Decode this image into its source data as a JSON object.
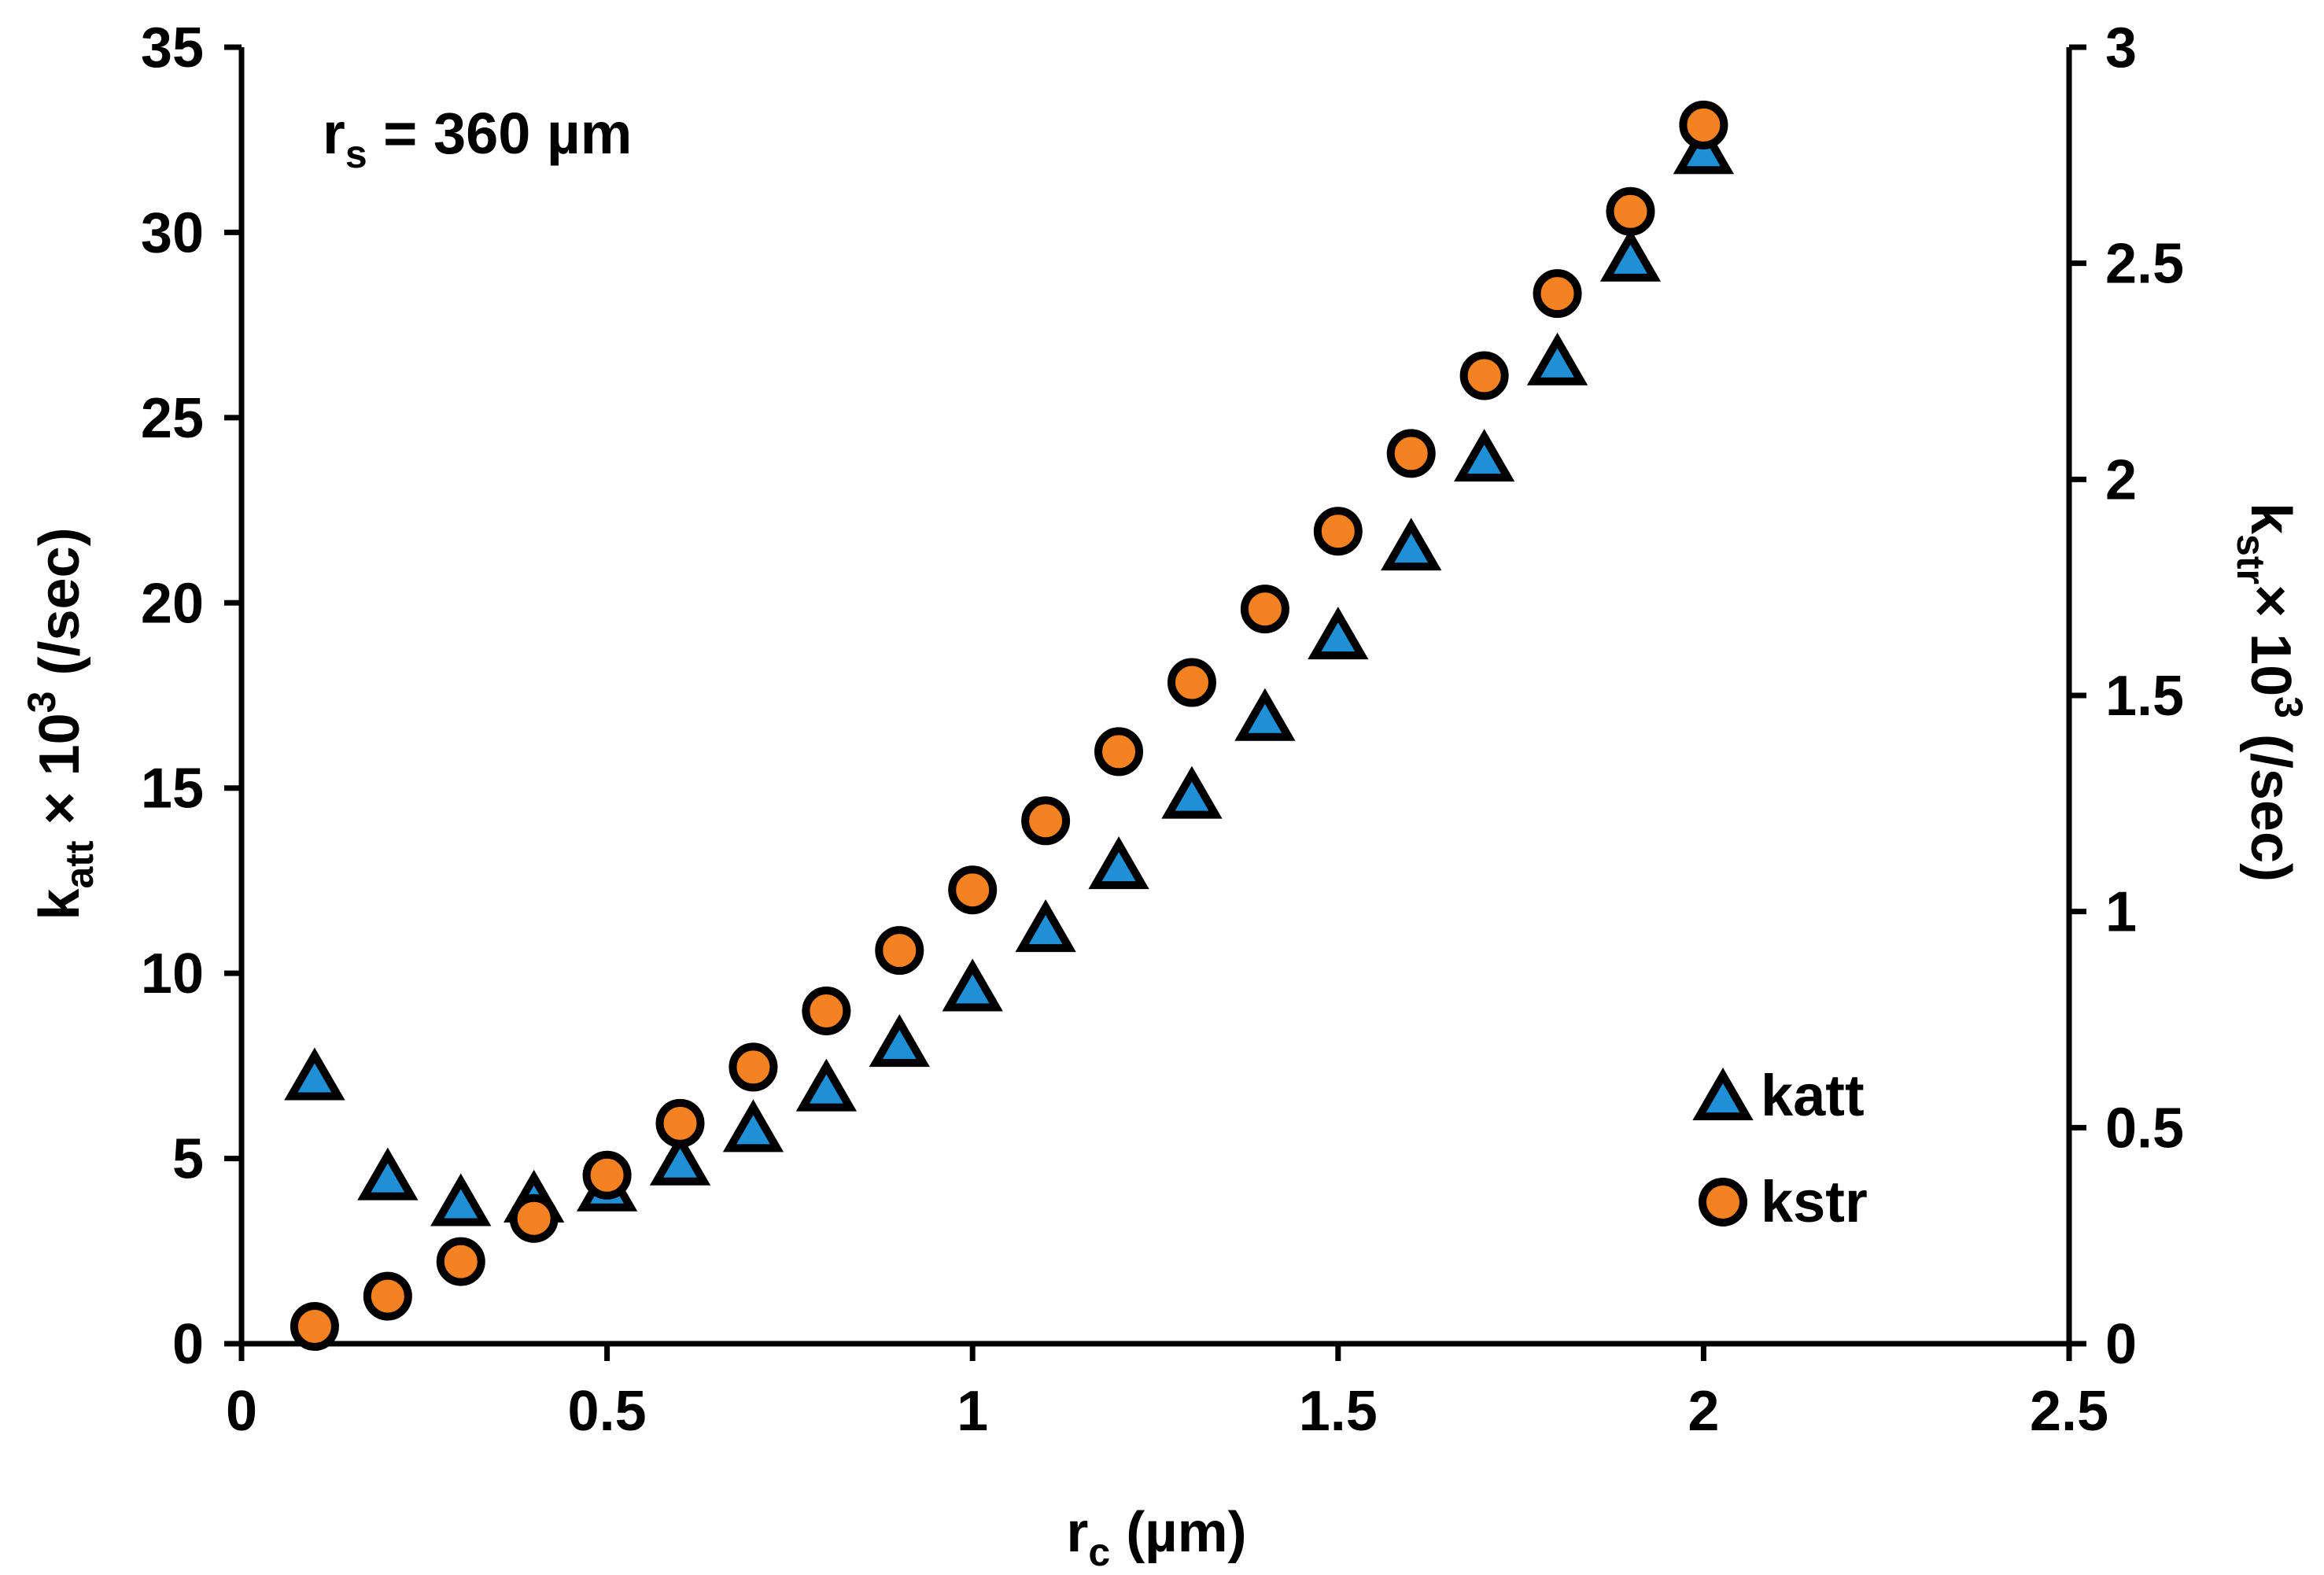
{
  "chart_data": {
    "type": "scatter",
    "annotation": {
      "main": "r",
      "sub": "s",
      "rest": " = 360 µm"
    },
    "xlabel": {
      "main": "r",
      "sub": "c",
      "rest": " (µm)"
    },
    "ylabel_left": {
      "main": "k",
      "sub": "att",
      "rest": " × 10",
      "sup": "3",
      "tail": " (/sec)"
    },
    "ylabel_right": {
      "main": "k",
      "sub": "str",
      "rest": "× 10",
      "sup": "3",
      "tail": " (/sec)"
    },
    "xlim": [
      0,
      2.5
    ],
    "ylim_left": [
      0,
      35
    ],
    "ylim_right": [
      0,
      3
    ],
    "xticks": [
      "0",
      "0.5",
      "1",
      "1.5",
      "2",
      "2.5"
    ],
    "yticks_left": [
      "0",
      "5",
      "10",
      "15",
      "20",
      "25",
      "30",
      "35"
    ],
    "yticks_right": [
      "0",
      "0.5",
      "1",
      "1.5",
      "2",
      "2.5",
      "3"
    ],
    "legend_position": "bottom-right",
    "grid": false,
    "series": [
      {
        "name": "katt",
        "axis": "left",
        "marker": "triangle",
        "color": "#1f8fd6",
        "x": [
          0.1,
          0.2,
          0.3,
          0.4,
          0.5,
          0.6,
          0.7,
          0.8,
          0.9,
          1.0,
          1.1,
          1.2,
          1.3,
          1.4,
          1.5,
          1.6,
          1.7,
          1.8,
          1.9,
          2.0
        ],
        "y": [
          7.1,
          4.4,
          3.7,
          3.8,
          4.1,
          4.8,
          5.7,
          6.8,
          8.0,
          9.5,
          11.1,
          12.8,
          14.7,
          16.8,
          19.0,
          21.4,
          23.8,
          26.4,
          29.2,
          32.1
        ]
      },
      {
        "name": "kstr",
        "axis": "right",
        "marker": "circle",
        "color": "#f58220",
        "x": [
          0.1,
          0.2,
          0.3,
          0.4,
          0.5,
          0.6,
          0.7,
          0.8,
          0.9,
          1.0,
          1.1,
          1.2,
          1.3,
          1.4,
          1.5,
          1.6,
          1.7,
          1.8,
          1.9,
          2.0
        ],
        "y": [
          0.04,
          0.11,
          0.19,
          0.29,
          0.39,
          0.51,
          0.64,
          0.77,
          0.91,
          1.05,
          1.21,
          1.37,
          1.53,
          1.7,
          1.88,
          2.06,
          2.24,
          2.43,
          2.62,
          2.82
        ]
      }
    ]
  }
}
